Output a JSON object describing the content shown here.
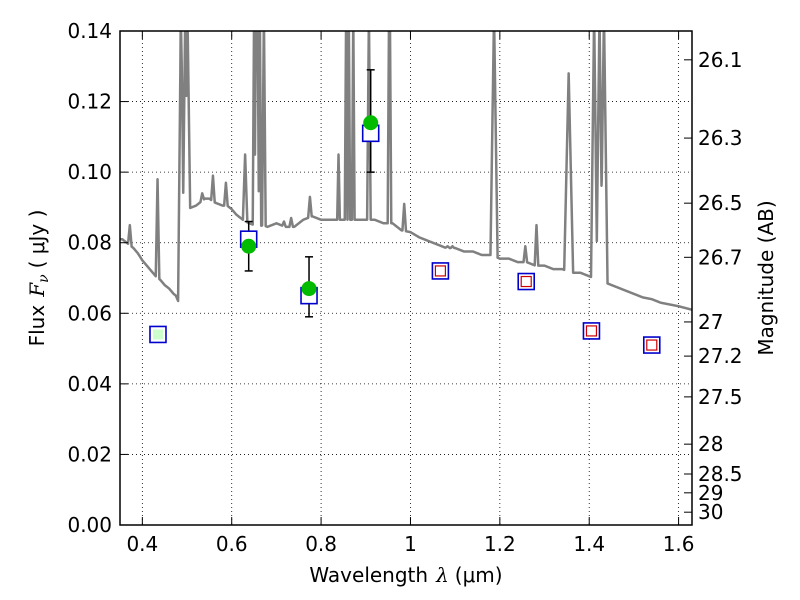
{
  "chart_data": {
    "type": "scatter",
    "xlabel_text": "Wavelength",
    "xlabel_symbol": "λ",
    "xlabel_unit": "(μm)",
    "ylabel_text": "Flux",
    "ylabel_symbol": "F",
    "ylabel_subscript": "ν",
    "ylabel_unit": "( μJy )",
    "y2label": "Magnitude (AB)",
    "xlim": [
      0.35,
      1.63
    ],
    "ylim": [
      0.0,
      0.14
    ],
    "grid": true,
    "x_ticks": [
      {
        "value": 0.4,
        "label": "0.4"
      },
      {
        "value": 0.6,
        "label": "0.6"
      },
      {
        "value": 0.8,
        "label": "0.8"
      },
      {
        "value": 1.0,
        "label": "1"
      },
      {
        "value": 1.2,
        "label": "1.2"
      },
      {
        "value": 1.4,
        "label": "1.4"
      },
      {
        "value": 1.6,
        "label": "1.6"
      }
    ],
    "y_ticks": [
      {
        "value": 0.0,
        "label": "0.00"
      },
      {
        "value": 0.02,
        "label": "0.02"
      },
      {
        "value": 0.04,
        "label": "0.04"
      },
      {
        "value": 0.06,
        "label": "0.06"
      },
      {
        "value": 0.08,
        "label": "0.08"
      },
      {
        "value": 0.1,
        "label": "0.10"
      },
      {
        "value": 0.12,
        "label": "0.12"
      },
      {
        "value": 0.14,
        "label": "0.14"
      }
    ],
    "y2_ticks": [
      {
        "value": 26.1,
        "label": "26.1"
      },
      {
        "value": 26.3,
        "label": "26.3"
      },
      {
        "value": 26.5,
        "label": "26.5"
      },
      {
        "value": 26.7,
        "label": "26.7"
      },
      {
        "value": 27.0,
        "label": "27"
      },
      {
        "value": 27.2,
        "label": "27.2"
      },
      {
        "value": 27.5,
        "label": "27.5"
      },
      {
        "value": 28.0,
        "label": "28"
      },
      {
        "value": 28.5,
        "label": "28.5"
      },
      {
        "value": 29.0,
        "label": "29"
      },
      {
        "value": 30.0,
        "label": "30"
      }
    ],
    "colors": {
      "spectrum": "#808080",
      "observed": "#00bb00",
      "model_box": "#0000cc",
      "upper_box_inner": "#cc0000",
      "upper_box_fill": "#ccffcc",
      "errorbar": "#000000"
    },
    "series": [
      {
        "kind": "model_spectrum",
        "x": [
          0.355,
          0.36,
          0.365,
          0.37,
          0.375,
          0.38,
          0.39,
          0.4,
          0.41,
          0.42,
          0.43,
          0.44,
          0.45,
          0.46,
          0.47,
          0.475,
          0.48,
          0.485,
          0.488,
          0.49,
          0.5,
          0.51,
          0.52,
          0.53,
          0.54,
          0.55,
          0.56,
          0.57,
          0.58,
          0.59,
          0.6,
          0.61,
          0.62,
          0.63,
          0.64,
          0.65,
          0.66,
          0.67,
          0.68,
          0.7,
          0.72,
          0.74,
          0.76,
          0.78,
          0.8,
          0.82,
          0.84,
          0.86,
          0.88,
          0.9,
          0.92,
          0.94,
          0.96,
          0.98,
          1.0,
          1.02,
          1.04,
          1.06,
          1.08,
          1.1,
          1.12,
          1.14,
          1.16,
          1.18,
          1.2,
          1.22,
          1.24,
          1.26,
          1.28,
          1.3,
          1.32,
          1.34,
          1.36,
          1.38,
          1.4,
          1.42,
          1.44,
          1.46,
          1.48,
          1.5,
          1.52,
          1.54,
          1.56,
          1.58,
          1.6,
          1.63
        ],
        "y": [
          0.081,
          0.0805,
          0.08,
          0.0795,
          0.079,
          0.0785,
          0.077,
          0.075,
          0.0735,
          0.072,
          0.0705,
          0.0695,
          0.068,
          0.067,
          0.0655,
          0.065,
          0.0635,
          0.069,
          0.084,
          0.088,
          0.0895,
          0.09,
          0.0905,
          0.0915,
          0.0925,
          0.0925,
          0.0915,
          0.091,
          0.0905,
          0.0905,
          0.0895,
          0.088,
          0.087,
          0.086,
          0.0855,
          0.085,
          0.0845,
          0.085,
          0.0845,
          0.0855,
          0.0845,
          0.0845,
          0.0865,
          0.0875,
          0.0865,
          0.0865,
          0.0865,
          0.0865,
          0.0865,
          0.0865,
          0.0865,
          0.0855,
          0.0855,
          0.0835,
          0.083,
          0.0815,
          0.0805,
          0.0795,
          0.0785,
          0.0785,
          0.0775,
          0.0775,
          0.0765,
          0.0765,
          0.0755,
          0.0755,
          0.0745,
          0.0745,
          0.0735,
          0.0735,
          0.0725,
          0.0725,
          0.0715,
          0.0715,
          0.0705,
          0.0695,
          0.0685,
          0.0675,
          0.0665,
          0.0655,
          0.0645,
          0.064,
          0.063,
          0.0625,
          0.062,
          0.061
        ]
      },
      {
        "kind": "emission_lines",
        "x": [
          0.372,
          0.434,
          0.486,
          0.496,
          0.501,
          0.534,
          0.558,
          0.587,
          0.63,
          0.65,
          0.654,
          0.656,
          0.658,
          0.663,
          0.672,
          0.717,
          0.733,
          0.775,
          0.839,
          0.856,
          0.862,
          0.872,
          0.907,
          0.952,
          0.954,
          0.986,
          1.083,
          1.094,
          1.187,
          1.257,
          1.282,
          1.354,
          1.411,
          1.423,
          1.433
        ],
        "peak": [
          0.085,
          0.098,
          0.145,
          0.145,
          0.145,
          0.094,
          0.099,
          0.097,
          0.105,
          0.145,
          0.145,
          0.145,
          0.145,
          0.145,
          0.145,
          0.086,
          0.087,
          0.093,
          0.105,
          0.145,
          0.145,
          0.145,
          0.145,
          0.145,
          0.145,
          0.091,
          0.079,
          0.079,
          0.145,
          0.079,
          0.085,
          0.128,
          0.145,
          0.145,
          0.145
        ],
        "width": [
          0.004,
          0.004,
          0.006,
          0.005,
          0.006,
          0.004,
          0.004,
          0.004,
          0.005,
          0.003,
          0.003,
          0.004,
          0.003,
          0.003,
          0.004,
          0.004,
          0.004,
          0.004,
          0.003,
          0.003,
          0.003,
          0.003,
          0.004,
          0.003,
          0.003,
          0.004,
          0.005,
          0.004,
          0.008,
          0.004,
          0.004,
          0.01,
          0.007,
          0.007,
          0.008
        ]
      },
      {
        "kind": "observed",
        "x": [
          0.638,
          0.773,
          0.911
        ],
        "y": [
          0.079,
          0.067,
          0.114
        ],
        "yerr_low": [
          0.072,
          0.059,
          0.1
        ],
        "yerr_high": [
          0.086,
          0.076,
          0.129
        ]
      },
      {
        "kind": "model_photometry",
        "x": [
          0.435,
          0.638,
          0.773,
          0.911,
          1.067,
          1.259,
          1.405,
          1.54
        ],
        "y": [
          0.054,
          0.081,
          0.065,
          0.111,
          0.072,
          0.069,
          0.055,
          0.051
        ],
        "band_type": [
          "green",
          "blue",
          "blue",
          "blue",
          "red",
          "red",
          "red",
          "red"
        ]
      }
    ]
  }
}
